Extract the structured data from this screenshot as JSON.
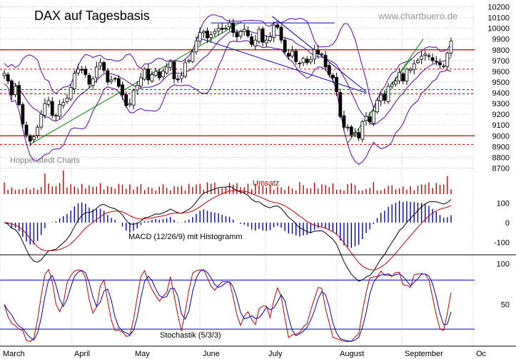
{
  "chart_data": {
    "type": "candlestick",
    "title": "DAX auf Tagesbasis",
    "watermark": "www.chartbuero.de",
    "source_label": "Hoppenstedt Charts",
    "x_months": [
      "March",
      "April",
      "May",
      "June",
      "July",
      "August",
      "September",
      "Oc"
    ],
    "price_axis": {
      "ticks": [
        8700,
        8800,
        8900,
        9000,
        9100,
        9200,
        9300,
        9400,
        9500,
        9600,
        9700,
        9800,
        9900,
        10000,
        10100,
        10200
      ],
      "ylim": [
        8650,
        10230
      ]
    },
    "support_resistance": {
      "solid": [
        9800,
        9000
      ],
      "dashed": [
        9620,
        9430,
        9390,
        8920
      ]
    },
    "trendlines": [
      {
        "from": [
          "2014-03-14",
          8920
        ],
        "to": [
          "2014-06-20",
          10060
        ],
        "color": "#008000"
      },
      {
        "from": [
          "2014-05-30",
          9920
        ],
        "to": [
          "2014-08-15",
          9400
        ],
        "color": "#0000c0"
      },
      {
        "from": [
          "2014-06-06",
          10050
        ],
        "to": [
          "2014-07-31",
          10050
        ],
        "color": "#0000c0"
      },
      {
        "from": [
          "2014-07-04",
          10110
        ],
        "to": [
          "2014-08-15",
          9410
        ],
        "color": "#0000c0"
      },
      {
        "from": [
          "2014-08-06",
          8930
        ],
        "to": [
          "2014-09-05",
          9720
        ],
        "color": "#008000"
      },
      {
        "from": [
          "2014-08-25",
          9420
        ],
        "to": [
          "2014-09-10",
          9900
        ],
        "color": "#008000"
      }
    ],
    "close_series": [
      9580,
      9510,
      9380,
      9460,
      9290,
      9110,
      9010,
      8950,
      8990,
      9080,
      9200,
      9300,
      9330,
      9190,
      9190,
      9290,
      9310,
      9350,
      9450,
      9580,
      9620,
      9610,
      9570,
      9480,
      9530,
      9640,
      9680,
      9610,
      9500,
      9520,
      9530,
      9460,
      9380,
      9280,
      9300,
      9420,
      9470,
      9540,
      9620,
      9520,
      9570,
      9600,
      9540,
      9600,
      9640,
      9690,
      9530,
      9520,
      9560,
      9680,
      9700,
      9780,
      9880,
      9960,
      9970,
      9910,
      9940,
      9970,
      10000,
      9990,
      10000,
      10050,
      9960,
      9920,
      9970,
      9990,
      9930,
      9850,
      9890,
      9990,
      9870,
      9890,
      9920,
      10030,
      10010,
      9890,
      9780,
      9740,
      9790,
      9690,
      9670,
      9720,
      9680,
      9710,
      9800,
      9760,
      9760,
      9640,
      9570,
      9540,
      9410,
      9180,
      9080,
      9080,
      9010,
      9030,
      8980,
      9130,
      9180,
      9130,
      9230,
      9330,
      9380,
      9330,
      9460,
      9480,
      9510,
      9590,
      9510,
      9620,
      9620,
      9670,
      9700,
      9740,
      9760,
      9740,
      9700,
      9690,
      9660,
      9650,
      9770,
      9880
    ],
    "volume_label": "Umsatz",
    "macd": {
      "label": "MACD (12/26/9) mit Histogramm",
      "ticks": [
        100,
        0,
        -100
      ],
      "ylim": [
        -160,
        130
      ]
    },
    "stochastic": {
      "label": "Stochastik (5/3/3)",
      "ticks": [
        100,
        50
      ],
      "ylim": [
        0,
        110
      ],
      "levels": [
        80,
        20
      ]
    }
  }
}
